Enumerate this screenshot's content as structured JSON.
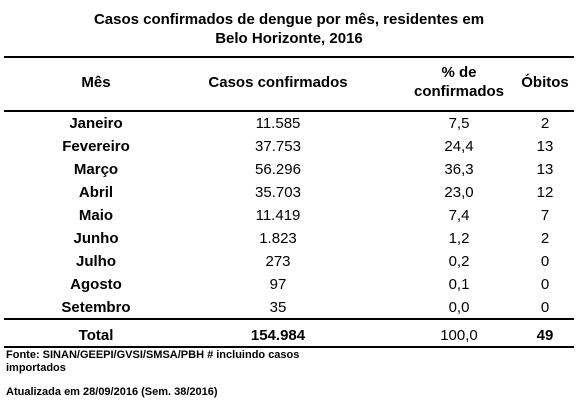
{
  "title_line1": "Casos confirmados de dengue por mês, residentes em",
  "title_line2": "Belo Horizonte, 2016",
  "headers": {
    "mes": "Mês",
    "casos": "Casos confirmados",
    "pct_line1": "% de",
    "pct_line2": "confirmados",
    "obitos": "Óbitos"
  },
  "rows": [
    {
      "mes": "Janeiro",
      "casos": "11.585",
      "pct": "7,5",
      "obitos": "2"
    },
    {
      "mes": "Fevereiro",
      "casos": "37.753",
      "pct": "24,4",
      "obitos": "13"
    },
    {
      "mes": "Março",
      "casos": "56.296",
      "pct": "36,3",
      "obitos": "13"
    },
    {
      "mes": "Abril",
      "casos": "35.703",
      "pct": "23,0",
      "obitos": "12"
    },
    {
      "mes": "Maio",
      "casos": "11.419",
      "pct": "7,4",
      "obitos": "7"
    },
    {
      "mes": "Junho",
      "casos": "1.823",
      "pct": "1,2",
      "obitos": "2"
    },
    {
      "mes": "Julho",
      "casos": "273",
      "pct": "0,2",
      "obitos": "0"
    },
    {
      "mes": "Agosto",
      "casos": "97",
      "pct": "0,1",
      "obitos": "0"
    },
    {
      "mes": "Setembro",
      "casos": "35",
      "pct": "0,0",
      "obitos": "0"
    }
  ],
  "total": {
    "mes": "Total",
    "casos": "154.984",
    "pct": "100,0",
    "obitos": "49"
  },
  "source_line1": "Fonte: SINAN/GEEPI/GVSI/SMSA/PBH # incluindo casos",
  "source_line2": "importados",
  "updated": "Atualizada em 28/09/2016 (Sem. 38/2016)"
}
